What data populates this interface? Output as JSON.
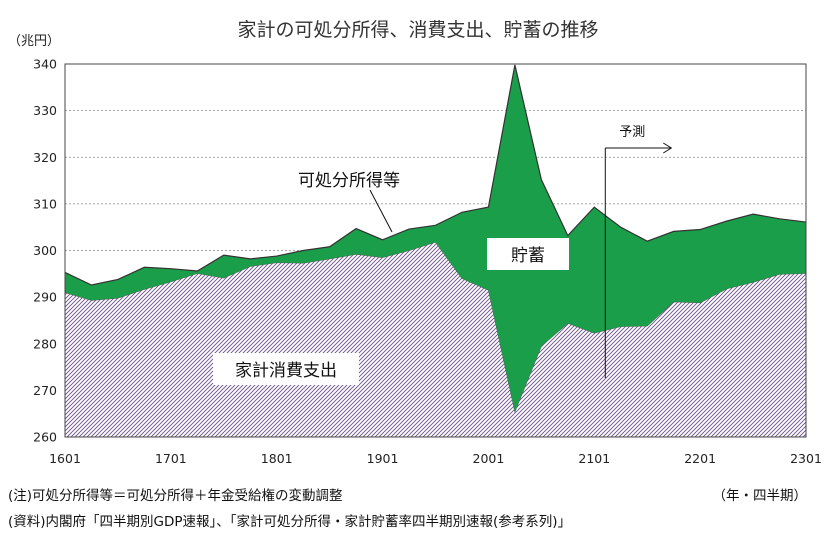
{
  "chart_data": {
    "type": "area",
    "title": "家計の可処分所得、消費支出、貯蓄の推移",
    "ylabel": "（兆円）",
    "xlabel": "（年・四半期）",
    "ylim": [
      260,
      340
    ],
    "yticks": [
      260,
      270,
      280,
      290,
      300,
      310,
      320,
      330,
      340
    ],
    "x": [
      "1601",
      "1602",
      "1603",
      "1604",
      "1701",
      "1702",
      "1703",
      "1704",
      "1801",
      "1802",
      "1803",
      "1804",
      "1901",
      "1902",
      "1903",
      "1904",
      "2001",
      "2002",
      "2003",
      "2004",
      "2101",
      "2102",
      "2103",
      "2104",
      "2201",
      "2202",
      "2203",
      "2204",
      "2301"
    ],
    "xtick_labels": [
      "1601",
      "1701",
      "1801",
      "1901",
      "2001",
      "2101",
      "2201",
      "2301"
    ],
    "series": [
      {
        "name": "可処分所得等",
        "values": [
          295.3,
          292.6,
          293.8,
          296.4,
          296.1,
          295.6,
          299.0,
          298.2,
          298.8,
          300.0,
          300.8,
          304.7,
          302.3,
          304.6,
          305.4,
          308.2,
          309.3,
          339.8,
          315.2,
          303.2,
          309.3,
          305.0,
          302.0,
          304.1,
          304.5,
          306.3,
          307.8,
          306.8,
          306.1
        ]
      },
      {
        "name": "家計消費支出",
        "values": [
          291.0,
          289.3,
          289.8,
          291.7,
          293.3,
          295.1,
          294.1,
          296.6,
          297.4,
          297.3,
          298.2,
          299.2,
          298.5,
          300.0,
          301.8,
          294.0,
          291.5,
          265.4,
          279.5,
          284.4,
          282.3,
          283.7,
          283.8,
          289.0,
          288.8,
          291.8,
          293.2,
          294.9,
          295.1
        ]
      }
    ],
    "annotations": {
      "income": "可処分所得等",
      "savings": "貯蓄",
      "consumption": "家計消費支出",
      "forecast": "予測"
    },
    "forecast_start": "2101",
    "grid": true,
    "colors": {
      "savings": "#1a9e4a",
      "consumption_hatch": "#6b4e8c",
      "income_line": "#333333"
    }
  },
  "notes": {
    "note": "(注)可処分所得等＝可処分所得＋年金受給権の変動調整",
    "source": "(資料)内閣府「四半期別GDP速報」、「家計可処分所得・家計貯蓄率四半期別速報(参考系列)」"
  }
}
